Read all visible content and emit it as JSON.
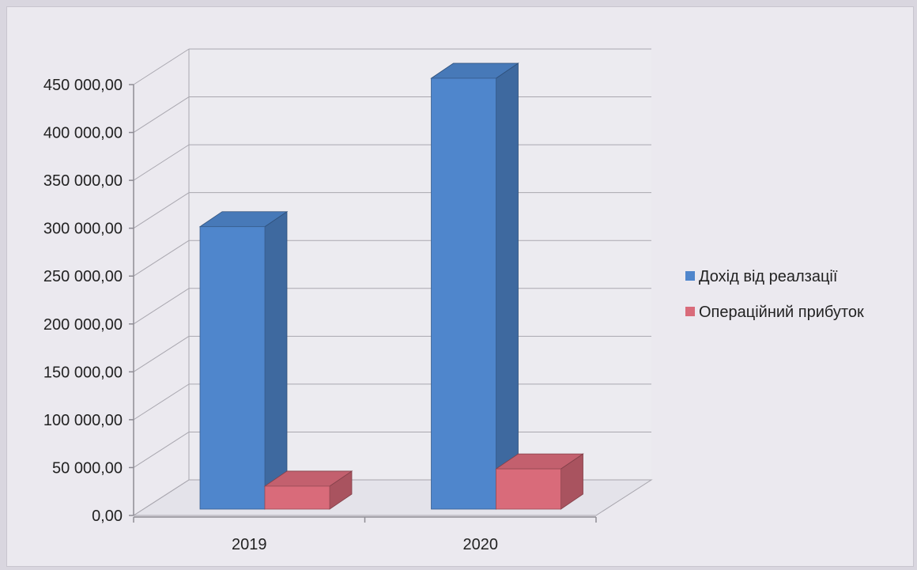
{
  "chart_data": {
    "type": "bar",
    "title": "",
    "xlabel": "",
    "ylabel": "",
    "categories": [
      "2019",
      "2020"
    ],
    "series": [
      {
        "name": "Дохід від реалзації",
        "values": [
          295000,
          450000
        ],
        "color": "#4f86cc"
      },
      {
        "name": "Операційний прибуток",
        "values": [
          24000,
          42000
        ],
        "color": "#d96b7a"
      }
    ],
    "ylim": [
      0,
      450000
    ],
    "yticks": [
      0,
      50000,
      100000,
      150000,
      200000,
      250000,
      300000,
      350000,
      400000,
      450000
    ],
    "ytick_labels": [
      "0,00",
      "50 000,00",
      "100 000,00",
      "150 000,00",
      "200 000,00",
      "250 000,00",
      "300 000,00",
      "350 000,00",
      "400 000,00",
      "450 000,00"
    ],
    "grid": true,
    "legend_position": "right",
    "style": "3d-clustered-column"
  }
}
